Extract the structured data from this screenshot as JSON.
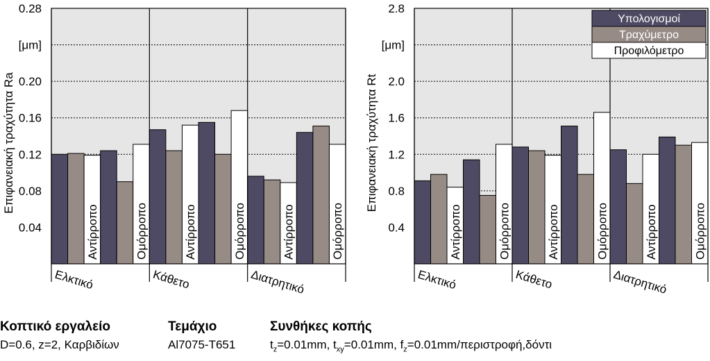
{
  "colors": {
    "calc": "#4f4a63",
    "rough": "#978b86",
    "prof": "#ffffff",
    "plot_bg": "#e6e6e6",
    "grid": "#000000"
  },
  "chart_data": [
    {
      "type": "bar",
      "ylabel": "Επιφανειακή τραχύτητα Ra",
      "unit_label": "[μm]",
      "ylim": [
        0,
        0.28
      ],
      "yticks": [
        "0.04",
        "0.08",
        "0.12",
        "0.16",
        "0.20",
        "0.28"
      ],
      "grid": true,
      "groups": [
        "Ελκτικό",
        "Κάθετο",
        "Διατρητικό"
      ],
      "subgroups": [
        "Αντίρροπο",
        "Ομόρροπο"
      ],
      "series": [
        {
          "name": "Υπολογισμοί",
          "values": [
            0.12,
            0.124,
            0.147,
            0.155,
            0.096,
            0.144
          ]
        },
        {
          "name": "Τραχύμετρο",
          "values": [
            0.121,
            0.09,
            0.124,
            0.12,
            0.092,
            0.151
          ]
        },
        {
          "name": "Προφιλόμετρο",
          "values": [
            0.119,
            0.131,
            0.152,
            0.168,
            0.089,
            0.131
          ]
        }
      ]
    },
    {
      "type": "bar",
      "ylabel": "Επιφανειακή τραχύτητα Rt",
      "unit_label": "[μm]",
      "ylim": [
        0,
        2.8
      ],
      "yticks": [
        "0.4",
        "0.8",
        "1.2",
        "1.6",
        "2.0",
        "2.8"
      ],
      "grid": true,
      "legend": "top-right",
      "groups": [
        "Ελκτικό",
        "Κάθετο",
        "Διατρητικό"
      ],
      "subgroups": [
        "Αντίρροπο",
        "Ομόρροπο"
      ],
      "series": [
        {
          "name": "Υπολογισμοί",
          "values": [
            0.91,
            1.14,
            1.28,
            1.51,
            1.25,
            1.39
          ]
        },
        {
          "name": "Τραχύμετρο",
          "values": [
            0.98,
            0.75,
            1.24,
            0.98,
            0.88,
            1.3
          ]
        },
        {
          "name": "Προφιλόμετρο",
          "values": [
            0.84,
            1.31,
            1.19,
            1.66,
            1.2,
            1.33
          ]
        }
      ]
    }
  ],
  "footer": {
    "tool_title": "Κοπτικό εργαλείο",
    "tool_desc": "D=0.6, z=2, Καρβιδίων",
    "part_title": "Τεμάχιο",
    "part_desc": "Al7075-T651",
    "cond_title": "Συνθήκες κοπής",
    "tz": "t",
    "tz_sub": "z",
    "tz_val": "=0.01mm, ",
    "txy": "t",
    "txy_sub": "xy",
    "txy_val": "=0.01mm, ",
    "fz": "f",
    "fz_sub": "z",
    "fz_val": "=0.01mm/περιστροφή,δόντι"
  }
}
